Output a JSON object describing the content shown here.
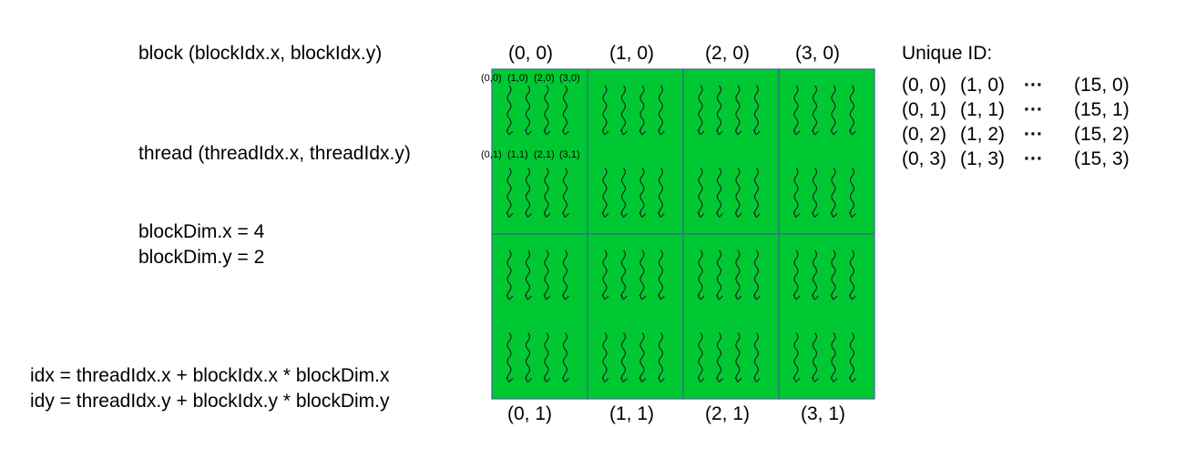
{
  "labels": {
    "block": "block (blockIdx.x,  blockIdx.y)",
    "thread": "thread (threadIdx.x, threadIdx.y)",
    "blockdim_x": "blockDim.x = 4",
    "blockdim_y": "blockDim.y = 2",
    "idx_formula": "idx = threadIdx.x + blockIdx.x *   blockDim.x",
    "idy_formula": "idy = threadIdx.y + blockIdx.y *   blockDim.y",
    "unique_id_title": "Unique ID:"
  },
  "block_labels_top": [
    "(0, 0)",
    "(1, 0)",
    "(2, 0)",
    "(3, 0)"
  ],
  "block_labels_bottom": [
    "(0, 1)",
    "(1, 1)",
    "(2, 1)",
    "(3, 1)"
  ],
  "thread_labels_row0": [
    "(0,0)",
    "(1,0)",
    "(2,0)",
    "(3,0)"
  ],
  "thread_labels_row1": [
    "(0,1)",
    "(1,1)",
    "(2,1)",
    "(3,1)"
  ],
  "unique_ids": [
    {
      "c1": "(0, 0)",
      "c2": "(1, 0)",
      "dots": "···",
      "c3": "(15, 0)"
    },
    {
      "c1": "(0, 1)",
      "c2": "(1, 1)",
      "dots": "···",
      "c3": "(15, 1)"
    },
    {
      "c1": "(0, 2)",
      "c2": "(1, 2)",
      "dots": "···",
      "c3": "(15, 2)"
    },
    {
      "c1": "(0, 3)",
      "c2": "(1, 3)",
      "dots": "···",
      "c3": "(15, 3)"
    }
  ],
  "colors": {
    "grid_fill": "#00c832",
    "grid_line": "#3a6a8a",
    "thread_stroke": "#1a1a1a"
  },
  "grid": {
    "block_cols": 4,
    "block_rows": 2,
    "threads_per_block_x": 4,
    "threads_per_block_y": 2
  }
}
